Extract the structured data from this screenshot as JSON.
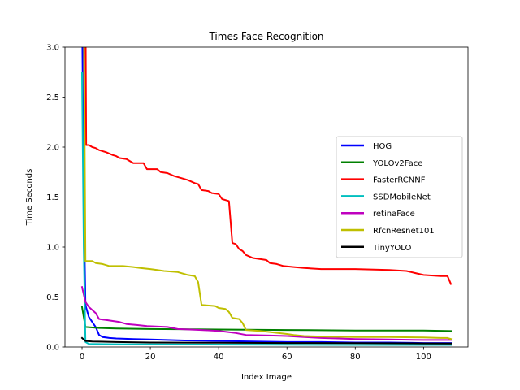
{
  "chart_data": {
    "type": "line",
    "title": "Times Face Recognition",
    "xlabel": "Index Image",
    "ylabel": "Time Seconds",
    "xlim": [
      -5,
      113
    ],
    "ylim": [
      0,
      3.0
    ],
    "xticks": [
      0,
      20,
      40,
      60,
      80,
      100
    ],
    "yticks": [
      0.0,
      0.5,
      1.0,
      1.5,
      2.0,
      2.5,
      3.0
    ],
    "xtick_labels": [
      "0",
      "20",
      "40",
      "60",
      "80",
      "100"
    ],
    "ytick_labels": [
      "0.0",
      "0.5",
      "1.0",
      "1.5",
      "2.0",
      "2.5",
      "3.0"
    ],
    "grid": false,
    "legend_position": "center-right",
    "series": [
      {
        "name": "HOG",
        "color": "#0000ff",
        "points": [
          [
            0,
            3.4
          ],
          [
            0.5,
            1.5
          ],
          [
            1,
            0.42
          ],
          [
            2,
            0.3
          ],
          [
            3,
            0.25
          ],
          [
            4,
            0.2
          ],
          [
            5,
            0.12
          ],
          [
            6,
            0.1
          ],
          [
            8,
            0.09
          ],
          [
            10,
            0.085
          ],
          [
            15,
            0.08
          ],
          [
            20,
            0.075
          ],
          [
            25,
            0.07
          ],
          [
            30,
            0.065
          ],
          [
            40,
            0.06
          ],
          [
            50,
            0.055
          ],
          [
            60,
            0.05
          ],
          [
            70,
            0.05
          ],
          [
            80,
            0.045
          ],
          [
            90,
            0.045
          ],
          [
            100,
            0.04
          ],
          [
            108,
            0.04
          ]
        ]
      },
      {
        "name": "YOLOv2Face",
        "color": "#008000",
        "points": [
          [
            0,
            0.4
          ],
          [
            1,
            0.2
          ],
          [
            5,
            0.19
          ],
          [
            10,
            0.185
          ],
          [
            20,
            0.18
          ],
          [
            40,
            0.175
          ],
          [
            60,
            0.17
          ],
          [
            80,
            0.165
          ],
          [
            100,
            0.165
          ],
          [
            108,
            0.16
          ]
        ]
      },
      {
        "name": "FasterRCNNF",
        "color": "#ff0000",
        "points": [
          [
            1,
            3.5
          ],
          [
            1.2,
            2.02
          ],
          [
            2,
            2.02
          ],
          [
            3,
            2.0
          ],
          [
            4,
            1.99
          ],
          [
            5,
            1.97
          ],
          [
            7,
            1.95
          ],
          [
            9,
            1.92
          ],
          [
            10,
            1.91
          ],
          [
            11,
            1.89
          ],
          [
            13,
            1.88
          ],
          [
            15,
            1.84
          ],
          [
            18,
            1.84
          ],
          [
            19,
            1.78
          ],
          [
            22,
            1.78
          ],
          [
            23,
            1.75
          ],
          [
            25,
            1.74
          ],
          [
            27,
            1.71
          ],
          [
            29,
            1.69
          ],
          [
            31,
            1.67
          ],
          [
            33,
            1.64
          ],
          [
            34,
            1.63
          ],
          [
            35,
            1.57
          ],
          [
            37,
            1.56
          ],
          [
            38,
            1.54
          ],
          [
            40,
            1.53
          ],
          [
            41,
            1.48
          ],
          [
            42,
            1.47
          ],
          [
            43,
            1.46
          ],
          [
            44,
            1.04
          ],
          [
            45,
            1.03
          ],
          [
            46,
            0.98
          ],
          [
            47,
            0.96
          ],
          [
            48,
            0.92
          ],
          [
            50,
            0.89
          ],
          [
            52,
            0.88
          ],
          [
            54,
            0.87
          ],
          [
            55,
            0.84
          ],
          [
            57,
            0.83
          ],
          [
            59,
            0.81
          ],
          [
            62,
            0.8
          ],
          [
            65,
            0.79
          ],
          [
            70,
            0.78
          ],
          [
            80,
            0.78
          ],
          [
            90,
            0.77
          ],
          [
            95,
            0.76
          ],
          [
            100,
            0.72
          ],
          [
            105,
            0.71
          ],
          [
            107,
            0.71
          ],
          [
            108,
            0.63
          ]
        ]
      },
      {
        "name": "SSDMobileNet",
        "color": "#00bfbf",
        "points": [
          [
            0,
            2.74
          ],
          [
            0.5,
            1.0
          ],
          [
            1,
            0.05
          ],
          [
            2,
            0.03
          ],
          [
            10,
            0.028
          ],
          [
            30,
            0.025
          ],
          [
            60,
            0.022
          ],
          [
            80,
            0.02
          ],
          [
            100,
            0.02
          ],
          [
            108,
            0.02
          ]
        ]
      },
      {
        "name": "retinaFace",
        "color": "#bf00bf",
        "points": [
          [
            0,
            0.6
          ],
          [
            1,
            0.45
          ],
          [
            2,
            0.4
          ],
          [
            3,
            0.37
          ],
          [
            4,
            0.34
          ],
          [
            5,
            0.28
          ],
          [
            7,
            0.27
          ],
          [
            9,
            0.26
          ],
          [
            11,
            0.25
          ],
          [
            13,
            0.23
          ],
          [
            16,
            0.22
          ],
          [
            19,
            0.21
          ],
          [
            25,
            0.2
          ],
          [
            28,
            0.18
          ],
          [
            35,
            0.17
          ],
          [
            40,
            0.16
          ],
          [
            45,
            0.14
          ],
          [
            48,
            0.12
          ],
          [
            55,
            0.115
          ],
          [
            60,
            0.11
          ],
          [
            65,
            0.1
          ],
          [
            70,
            0.09
          ],
          [
            75,
            0.085
          ],
          [
            80,
            0.08
          ],
          [
            90,
            0.075
          ],
          [
            100,
            0.07
          ],
          [
            108,
            0.07
          ]
        ]
      },
      {
        "name": "RfcnResnet101",
        "color": "#bfbf00",
        "points": [
          [
            0.5,
            3.5
          ],
          [
            1,
            0.86
          ],
          [
            3,
            0.86
          ],
          [
            4,
            0.84
          ],
          [
            6,
            0.83
          ],
          [
            8,
            0.81
          ],
          [
            12,
            0.81
          ],
          [
            15,
            0.8
          ],
          [
            17,
            0.79
          ],
          [
            20,
            0.78
          ],
          [
            22,
            0.77
          ],
          [
            24,
            0.76
          ],
          [
            28,
            0.75
          ],
          [
            31,
            0.72
          ],
          [
            33,
            0.71
          ],
          [
            34,
            0.65
          ],
          [
            35,
            0.42
          ],
          [
            39,
            0.41
          ],
          [
            40,
            0.39
          ],
          [
            42,
            0.38
          ],
          [
            43,
            0.35
          ],
          [
            44,
            0.29
          ],
          [
            46,
            0.28
          ],
          [
            47,
            0.24
          ],
          [
            48,
            0.17
          ],
          [
            52,
            0.16
          ],
          [
            55,
            0.15
          ],
          [
            60,
            0.13
          ],
          [
            62,
            0.12
          ],
          [
            65,
            0.11
          ],
          [
            70,
            0.105
          ],
          [
            80,
            0.1
          ],
          [
            90,
            0.1
          ],
          [
            100,
            0.095
          ],
          [
            105,
            0.09
          ],
          [
            107,
            0.09
          ],
          [
            108,
            0.08
          ]
        ]
      },
      {
        "name": "TinyYOLO",
        "color": "#000000",
        "points": [
          [
            0,
            0.09
          ],
          [
            1,
            0.06
          ],
          [
            3,
            0.055
          ],
          [
            10,
            0.05
          ],
          [
            20,
            0.045
          ],
          [
            40,
            0.042
          ],
          [
            60,
            0.04
          ],
          [
            80,
            0.038
          ],
          [
            100,
            0.036
          ],
          [
            108,
            0.035
          ]
        ]
      }
    ]
  }
}
